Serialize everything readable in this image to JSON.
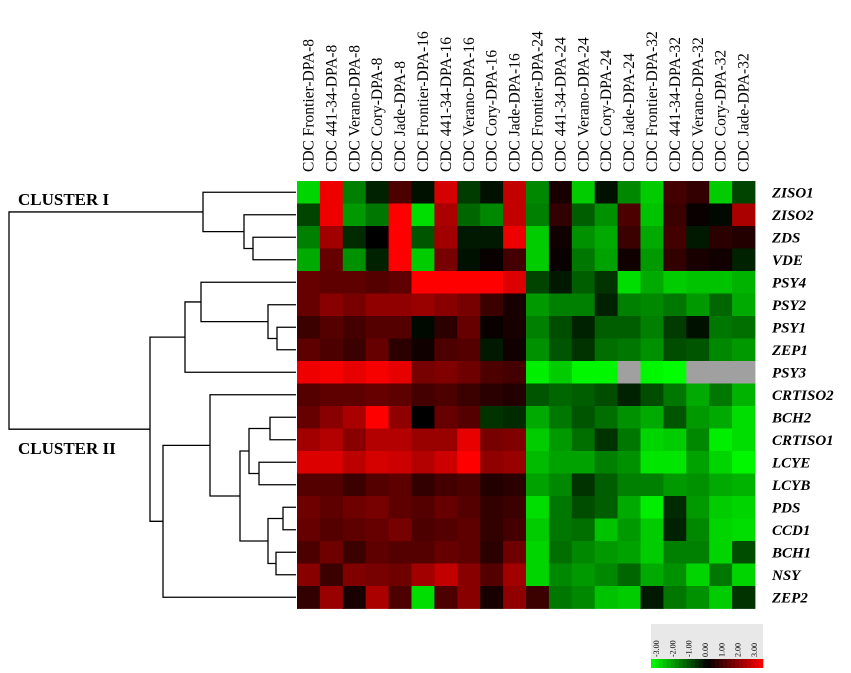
{
  "chart_data": {
    "type": "heatmap",
    "columns": [
      "CDC Frontier-DPA-8",
      "CDC 441-34-DPA-8",
      "CDC Verano-DPA-8",
      "CDC Cory-DPA-8",
      "CDC Jade-DPA-8",
      "CDC Frontier-DPA-16",
      "CDC 441-34-DPA-16",
      "CDC Verano-DPA-16",
      "CDC Cory-DPA-16",
      "CDC Jade-DPA-16",
      "CDC Frontier-DPA-24",
      "CDC 441-34-DPA-24",
      "CDC Verano-DPA-24",
      "CDC Cory-DPA-24",
      "CDC Jade-DPA-24",
      "CDC Frontier-DPA-32",
      "CDC 441-34-DPA-32",
      "CDC Verano-DPA-32",
      "CDC Cory-DPA-32",
      "CDC Jade-DPA-32"
    ],
    "rows": [
      "ZISO1",
      "ZISO2",
      "ZDS",
      "VDE",
      "PSY4",
      "PSY2",
      "PSY1",
      "ZEP1",
      "PSY3",
      "CRTISO2",
      "BCH2",
      "CRTISO1",
      "LCYE",
      "LCYB",
      "PDS",
      "CCD1",
      "BCH1",
      "NSY",
      "ZEP2"
    ],
    "clusters": [
      {
        "label": "CLUSTER I"
      },
      {
        "label": "CLUSTER II"
      }
    ],
    "values": [
      [
        -2.5,
        2.8,
        -1.5,
        -0.4,
        0.9,
        -0.2,
        2.5,
        -0.7,
        -0.2,
        2.3,
        -1.6,
        0.3,
        -2.4,
        -0.2,
        -1.6,
        -2.4,
        0.8,
        0.6,
        -2.4,
        -0.8
      ],
      [
        -0.8,
        2.8,
        -1.8,
        -1.4,
        3.0,
        -2.6,
        2.0,
        -1.2,
        -1.6,
        2.3,
        -1.5,
        0.6,
        -1.1,
        -1.7,
        0.9,
        -2.3,
        0.7,
        0.1,
        -0.1,
        2.0
      ],
      [
        -1.5,
        1.9,
        -0.5,
        0.0,
        3.0,
        -1.0,
        1.9,
        -0.3,
        -0.3,
        2.8,
        -2.4,
        0.2,
        -1.7,
        -2.0,
        0.7,
        -2.0,
        0.8,
        -0.3,
        0.5,
        0.4
      ],
      [
        -2.0,
        1.2,
        -1.7,
        -0.4,
        3.0,
        -2.4,
        1.4,
        -0.2,
        0.1,
        0.8,
        -2.4,
        0.1,
        -1.4,
        -1.9,
        0.2,
        -1.8,
        0.6,
        0.3,
        0.2,
        -0.4
      ],
      [
        1.2,
        1.1,
        1.1,
        1.0,
        1.1,
        3.0,
        3.0,
        3.0,
        3.0,
        2.6,
        -0.8,
        -0.3,
        -1.1,
        -0.6,
        -2.6,
        -2.0,
        -2.4,
        -2.3,
        -2.3,
        -2.1
      ],
      [
        1.2,
        1.6,
        1.4,
        1.7,
        1.7,
        1.8,
        1.6,
        1.4,
        0.7,
        0.3,
        -1.8,
        -1.5,
        -1.5,
        -0.4,
        -1.5,
        -1.6,
        -1.4,
        -1.8,
        -1.2,
        -2.0
      ],
      [
        0.7,
        1.0,
        0.8,
        1.0,
        1.0,
        -0.1,
        0.5,
        1.2,
        0.1,
        0.3,
        -1.5,
        -0.9,
        -0.4,
        -1.1,
        -1.1,
        -1.5,
        -0.7,
        -0.2,
        -1.4,
        -1.3
      ],
      [
        1.1,
        0.9,
        0.7,
        1.2,
        0.5,
        0.2,
        0.9,
        1.0,
        -0.3,
        0.2,
        -1.7,
        -1.0,
        -0.6,
        -1.3,
        -1.4,
        -1.7,
        -0.9,
        -1.0,
        -1.6,
        -1.8
      ],
      [
        2.8,
        2.9,
        2.7,
        2.9,
        2.7,
        1.4,
        1.5,
        1.3,
        0.9,
        0.8,
        -2.8,
        -2.4,
        -2.9,
        -2.9,
        null,
        -2.9,
        -3.0,
        null,
        null,
        null
      ],
      [
        1.0,
        1.1,
        1.1,
        1.2,
        1.1,
        0.8,
        0.9,
        0.7,
        0.5,
        0.4,
        -1.0,
        -1.2,
        -1.1,
        -0.9,
        -0.4,
        -0.9,
        -1.4,
        -2.0,
        -1.4,
        -2.1
      ],
      [
        1.2,
        1.6,
        2.0,
        3.0,
        1.7,
        0.0,
        1.2,
        1.0,
        -0.6,
        -0.5,
        -2.0,
        -1.4,
        -1.0,
        -1.3,
        -1.7,
        -2.0,
        -1.0,
        -1.8,
        -2.0,
        -2.6
      ],
      [
        1.9,
        2.1,
        1.6,
        2.1,
        2.1,
        1.8,
        1.8,
        2.7,
        1.4,
        1.5,
        -2.4,
        -1.8,
        -1.3,
        -0.6,
        -1.4,
        -2.5,
        -2.4,
        -1.6,
        -2.8,
        -2.6
      ],
      [
        2.6,
        2.6,
        2.2,
        2.5,
        2.4,
        2.1,
        2.4,
        3.0,
        1.7,
        1.8,
        -2.2,
        -1.9,
        -1.9,
        -1.5,
        -1.7,
        -2.7,
        -2.7,
        -1.9,
        -2.5,
        -2.9
      ],
      [
        1.0,
        1.0,
        0.7,
        1.0,
        1.1,
        0.6,
        0.8,
        0.9,
        0.4,
        0.5,
        -1.9,
        -1.6,
        -0.6,
        -1.1,
        -1.5,
        -1.5,
        -1.8,
        -1.7,
        -2.0,
        -2.1
      ],
      [
        1.3,
        1.1,
        1.3,
        1.4,
        1.1,
        1.0,
        1.2,
        1.0,
        0.6,
        0.7,
        -2.6,
        -1.4,
        -0.9,
        -1.1,
        -2.0,
        -2.8,
        -0.5,
        -1.8,
        -2.4,
        -2.5
      ],
      [
        1.2,
        1.0,
        1.1,
        1.2,
        1.4,
        0.9,
        1.0,
        1.1,
        0.6,
        0.8,
        -2.4,
        -1.4,
        -1.3,
        -2.3,
        -1.8,
        -2.4,
        -0.4,
        -1.6,
        -2.5,
        -2.6
      ],
      [
        0.9,
        1.3,
        0.7,
        1.1,
        1.0,
        1.0,
        1.2,
        1.1,
        0.5,
        1.3,
        -2.5,
        -1.3,
        -1.6,
        -1.8,
        -1.9,
        -2.4,
        -1.5,
        -1.5,
        -2.5,
        -0.9
      ],
      [
        1.6,
        0.7,
        1.5,
        1.4,
        1.3,
        1.9,
        2.3,
        1.6,
        1.0,
        1.9,
        -2.5,
        -1.6,
        -1.8,
        -1.6,
        -1.2,
        -2.0,
        -1.7,
        -2.5,
        -1.4,
        -2.5
      ],
      [
        0.6,
        1.8,
        0.3,
        2.0,
        0.9,
        -2.6,
        0.9,
        1.6,
        0.3,
        1.7,
        0.7,
        -1.4,
        -1.6,
        -2.3,
        -2.4,
        -0.3,
        -1.4,
        -1.7,
        -2.4,
        -0.6
      ]
    ],
    "missing_color": "#a0a0a0",
    "color_scale": {
      "min": -3.0,
      "max": 3.0,
      "low_color": "#00ff00",
      "mid_color": "#000000",
      "high_color": "#ff0000"
    },
    "legend": {
      "ticks": [
        "-3.00",
        "-2.00",
        "-1.00",
        "0.00",
        "1.00",
        "2.00",
        "3.00"
      ],
      "placement": "bottom-right"
    }
  }
}
